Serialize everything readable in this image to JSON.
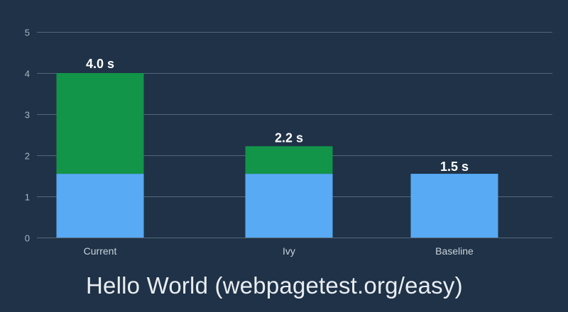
{
  "caption": "Hello World (webpagetest.org/easy)",
  "colors": {
    "background": "#1f3247",
    "grid": "#55677a",
    "tick_text": "#a9b6c3",
    "category_text": "#c9d2db",
    "value_text": "#ffffff",
    "segment_base": "#58aaf4",
    "segment_extra": "#129449"
  },
  "chart_data": {
    "type": "bar",
    "stacked": true,
    "categories": [
      "Current",
      "Ivy",
      "Baseline"
    ],
    "series": [
      {
        "values": [
          1.55,
          1.55,
          1.55
        ],
        "color": "#58aaf4"
      },
      {
        "values": [
          2.45,
          0.67,
          0
        ],
        "color": "#129449"
      }
    ],
    "totals": [
      4.0,
      2.2,
      1.5
    ],
    "value_labels": [
      "4.0 s",
      "2.2 s",
      "1.5 s"
    ],
    "yticks": [
      0,
      1,
      2,
      3,
      4,
      5
    ],
    "ylim": [
      0,
      5
    ],
    "grid": true,
    "legend": "none",
    "title": "",
    "xlabel": "",
    "ylabel": ""
  }
}
